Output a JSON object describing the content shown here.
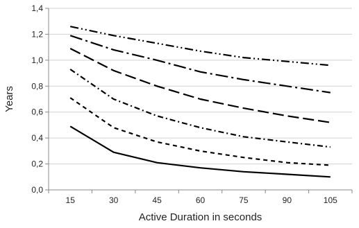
{
  "chart_data": {
    "type": "line",
    "title": "",
    "xlabel": "Active Duration in seconds",
    "ylabel": "Years",
    "xlim": [
      15,
      105
    ],
    "ylim": [
      0,
      1.4
    ],
    "x_ticks": [
      15,
      30,
      45,
      60,
      75,
      90,
      105
    ],
    "x_tick_labels": [
      "15",
      "30",
      "45",
      "60",
      "75",
      "90",
      "105"
    ],
    "y_ticks": [
      0,
      0.2,
      0.4,
      0.6,
      0.8,
      1.0,
      1.2,
      1.4
    ],
    "y_tick_labels": [
      "0,0",
      "0,2",
      "0,4",
      "0,6",
      "0,8",
      "1,0",
      "1,2",
      "1,4"
    ],
    "grid": "horizontal",
    "legend": "none",
    "x": [
      15,
      30,
      45,
      60,
      75,
      90,
      105
    ],
    "series": [
      {
        "values": [
          0.49,
          0.29,
          0.21,
          0.17,
          0.14,
          0.12,
          0.1
        ],
        "line_style": "solid"
      },
      {
        "values": [
          0.71,
          0.48,
          0.37,
          0.3,
          0.25,
          0.21,
          0.19
        ],
        "line_style": "short-dash"
      },
      {
        "values": [
          0.93,
          0.7,
          0.57,
          0.48,
          0.41,
          0.37,
          0.33
        ],
        "line_style": "dash-dot"
      },
      {
        "values": [
          1.09,
          0.92,
          0.8,
          0.7,
          0.63,
          0.57,
          0.52
        ],
        "line_style": "long-dash"
      },
      {
        "values": [
          1.19,
          1.08,
          1.0,
          0.91,
          0.85,
          0.8,
          0.75
        ],
        "line_style": "long-dash-dot"
      },
      {
        "values": [
          1.26,
          1.19,
          1.13,
          1.07,
          1.02,
          0.99,
          0.96
        ],
        "line_style": "dash-dot-dot"
      }
    ],
    "colors": {
      "line": "#000000",
      "grid": "#d0d0d0",
      "axis": "#888888"
    }
  }
}
